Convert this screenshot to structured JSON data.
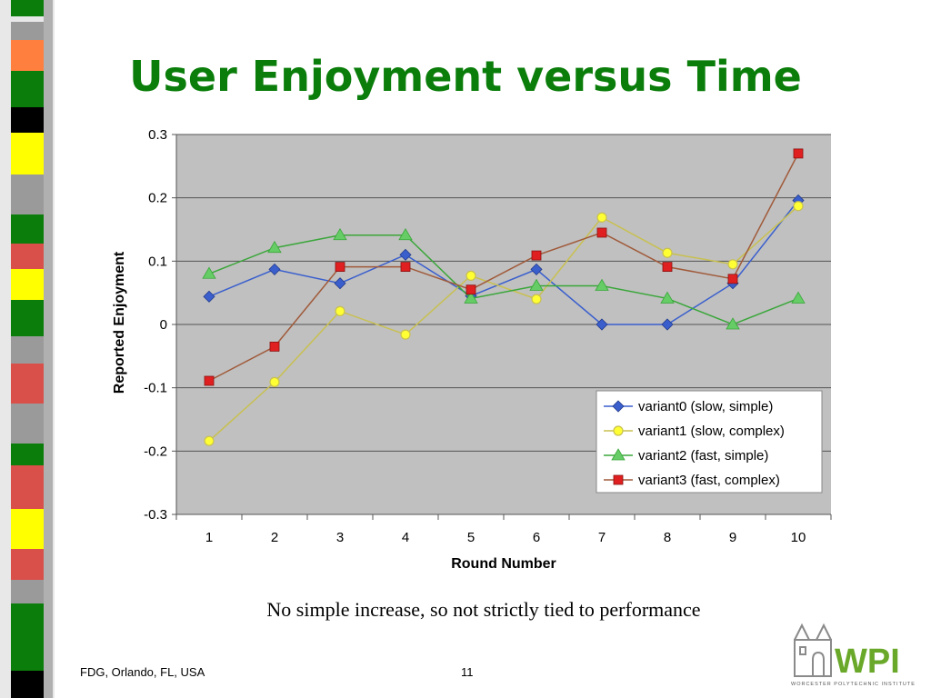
{
  "slide": {
    "title": "User Enjoyment versus Time",
    "caption": "No simple increase, so not strictly tied to performance",
    "footer_left": "FDG, Orlando, FL, USA",
    "page_number": "11",
    "logo_text": "WPI",
    "logo_subtext": "WORCESTER POLYTECHNIC INSTITUTE"
  },
  "colors": {
    "title": "#0a7d0a",
    "plot_bg": "#c0c0c0",
    "strip_green": "#0a7d0a",
    "strip_red": "#d9504a",
    "strip_yellow": "#ffff00",
    "strip_orange": "#ff7f3f",
    "strip_black": "#000000",
    "strip_gray": "#9a9a9a",
    "logo_green": "#6aa82a"
  },
  "chart_data": {
    "type": "line",
    "title": "",
    "xlabel": "Round Number",
    "ylabel": "Reported Enjoyment",
    "categories": [
      "1",
      "2",
      "3",
      "4",
      "5",
      "6",
      "7",
      "8",
      "9",
      "10"
    ],
    "ylim": [
      -0.3,
      0.3
    ],
    "yticks": [
      0.3,
      0.2,
      0.1,
      0,
      -0.1,
      -0.2,
      -0.3
    ],
    "ytick_labels": [
      "0.3",
      "0.2",
      "0.1",
      "0",
      "-0.1",
      "-0.2",
      "-0.3"
    ],
    "grid": "horizontal",
    "legend_position": "bottom-right",
    "series": [
      {
        "name": "variant0 (slow, simple)",
        "color": "#3a5fcd",
        "marker": "diamond",
        "values": [
          0.044,
          0.087,
          0.065,
          0.11,
          0.045,
          0.087,
          0.0,
          0.0,
          0.065,
          0.196
        ]
      },
      {
        "name": "variant1 (slow, complex)",
        "color": "#c8c050",
        "marker": "circle",
        "fill": "#ffff33",
        "values": [
          -0.184,
          -0.091,
          0.021,
          -0.016,
          0.077,
          0.04,
          0.169,
          0.113,
          0.095,
          0.187
        ]
      },
      {
        "name": "variant2 (fast, simple)",
        "color": "#3aa63a",
        "marker": "triangle",
        "fill": "#66cc66",
        "values": [
          0.08,
          0.121,
          0.141,
          0.141,
          0.041,
          0.061,
          0.061,
          0.041,
          0.0,
          0.041
        ]
      },
      {
        "name": "variant3 (fast, complex)",
        "color": "#a05a3a",
        "marker": "square",
        "fill": "#e02020",
        "values": [
          -0.089,
          -0.035,
          0.091,
          0.091,
          0.055,
          0.109,
          0.145,
          0.091,
          0.072,
          0.27
        ]
      }
    ]
  }
}
